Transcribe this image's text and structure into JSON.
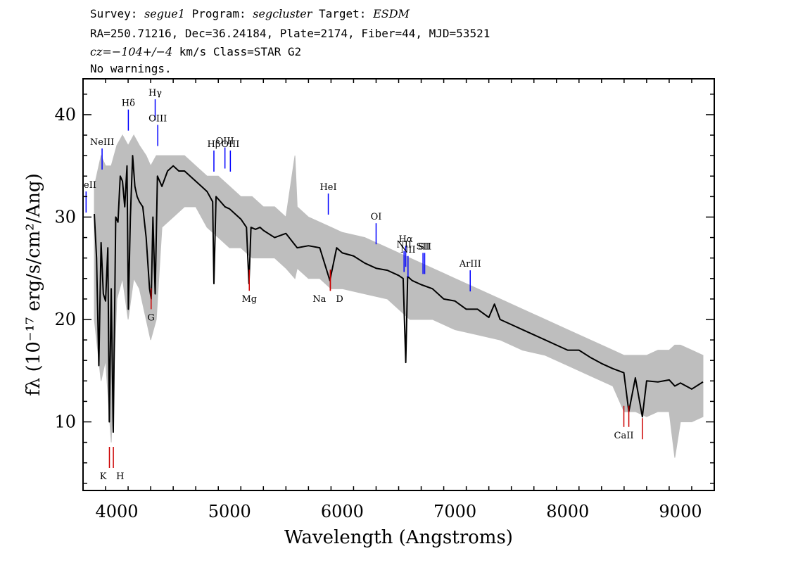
{
  "header": {
    "survey_label": "Survey:",
    "survey": "segue1",
    "program_label": "Program:",
    "program": "segcluster",
    "target_label": "Target:",
    "target": "ESDM",
    "line2": "RA=250.71216, Dec=36.24184, Plate=2174, Fiber=44, MJD=53521",
    "cz": "cz=−104+/−4",
    "cz_rest": " km/s Class=STAR G2",
    "warnings": "No warnings."
  },
  "chart_data": {
    "type": "line",
    "xlabel": "Wavelength (Angstroms)",
    "ylabel": "fλ (10⁻¹⁷ erg/s/cm²/Ang)",
    "xlim": [
      3700,
      9300
    ],
    "ylim": [
      3.3,
      43.5
    ],
    "x_ticks": [
      4000,
      5000,
      6000,
      7000,
      8000,
      9000
    ],
    "y_ticks": [
      10,
      20,
      30,
      40
    ],
    "grid": false,
    "series": [
      {
        "role": "flux",
        "color": "#000000",
        "x": [
          3800,
          3820,
          3840,
          3860,
          3880,
          3900,
          3920,
          3933,
          3950,
          3968,
          3990,
          4010,
          4030,
          4050,
          4070,
          4090,
          4102,
          4120,
          4140,
          4160,
          4180,
          4200,
          4230,
          4260,
          4290,
          4305,
          4320,
          4340,
          4360,
          4400,
          4450,
          4500,
          4550,
          4600,
          4650,
          4700,
          4750,
          4800,
          4850,
          4861,
          4880,
          4920,
          4960,
          5000,
          5050,
          5100,
          5150,
          5172,
          5190,
          5230,
          5270,
          5300,
          5400,
          5500,
          5600,
          5700,
          5800,
          5890,
          5950,
          6000,
          6100,
          6200,
          6300,
          6400,
          6500,
          6540,
          6563,
          6580,
          6620,
          6700,
          6800,
          6900,
          7000,
          7100,
          7200,
          7300,
          7350,
          7400,
          7500,
          7600,
          7700,
          7800,
          7900,
          8000,
          8100,
          8200,
          8300,
          8400,
          8498,
          8542,
          8600,
          8662,
          8700,
          8800,
          8900,
          8950,
          9000,
          9100,
          9200
        ],
        "values": [
          30.3,
          26,
          15.5,
          27.5,
          22.5,
          21.8,
          27,
          10,
          23,
          9,
          30,
          29.5,
          34,
          33.5,
          31,
          35,
          21,
          30,
          36,
          33,
          32,
          31.5,
          31,
          28,
          23,
          22,
          30,
          22.5,
          34,
          33,
          34.5,
          35,
          34.5,
          34.5,
          34,
          33.5,
          33,
          32.5,
          31.5,
          23.5,
          32,
          31.5,
          31,
          30.8,
          30.3,
          29.8,
          29,
          23.5,
          29,
          28.8,
          29,
          28.7,
          28,
          28.4,
          27,
          27.2,
          27,
          23.8,
          27,
          26.5,
          26.2,
          25.5,
          25,
          24.8,
          24.3,
          24,
          15.8,
          24.2,
          23.8,
          23.4,
          23,
          22,
          21.8,
          21,
          21,
          20.2,
          21.5,
          20,
          19.5,
          19,
          18.5,
          18,
          17.5,
          17,
          17,
          16.3,
          15.7,
          15.2,
          14.8,
          11,
          14.3,
          10.5,
          14,
          13.9,
          14.1,
          13.5,
          13.8,
          13.2,
          13.9
        ]
      },
      {
        "role": "error",
        "color": "#bebebe",
        "x": [
          3800,
          3860,
          3900,
          3950,
          4000,
          4050,
          4100,
          4150,
          4200,
          4260,
          4300,
          4350,
          4400,
          4500,
          4600,
          4700,
          4800,
          4900,
          5000,
          5100,
          5200,
          5300,
          5400,
          5500,
          5580,
          5600,
          5700,
          5800,
          5900,
          6000,
          6200,
          6400,
          6600,
          6800,
          7000,
          7200,
          7400,
          7600,
          7800,
          8000,
          8200,
          8400,
          8500,
          8600,
          8700,
          8800,
          8900,
          8950,
          9000,
          9100,
          9200
        ],
        "upper": [
          33,
          36,
          35,
          35,
          37,
          38,
          37,
          38,
          37,
          36,
          35,
          36,
          36,
          36,
          36,
          35,
          34,
          34,
          33,
          32,
          32,
          31,
          31,
          30,
          36,
          31,
          30,
          29.5,
          29,
          28.5,
          28,
          27,
          26,
          25,
          24,
          23,
          22,
          21,
          20,
          19,
          18,
          17,
          16.5,
          16.5,
          16.5,
          17,
          17,
          17.5,
          17.5,
          17,
          16.5
        ],
        "lower": [
          20,
          14,
          16,
          8,
          22,
          24,
          20,
          24,
          23,
          20,
          18,
          20,
          29,
          30,
          31,
          31,
          29,
          28,
          27,
          27,
          26,
          26,
          26,
          25,
          24,
          25,
          24,
          24,
          23,
          23,
          22.5,
          22,
          20,
          20,
          19,
          18.5,
          18,
          17,
          16.5,
          15.5,
          14.5,
          13.5,
          11,
          11,
          10.5,
          11,
          11,
          6.5,
          10,
          10,
          10.5
        ]
      }
    ],
    "emission_lines": [
      {
        "label": "NeII",
        "x": 3727,
        "y": 32.5
      },
      {
        "label": "NeIII",
        "x": 3869,
        "y": 36.7
      },
      {
        "label": "Hδ",
        "x": 4102,
        "y": 40.5
      },
      {
        "label": "Hγ",
        "x": 4340,
        "y": 41.5
      },
      {
        "label": "OIII",
        "x": 4363,
        "y": 39
      },
      {
        "label": "Hβ",
        "x": 4861,
        "y": 36.5
      },
      {
        "label": "OIII",
        "x": 4959,
        "y": 36.8
      },
      {
        "label": "OIII",
        "x": 5007,
        "y": 36.5
      },
      {
        "label": "HeI",
        "x": 5876,
        "y": 32.3
      },
      {
        "label": "OI",
        "x": 6300,
        "y": 29.4
      },
      {
        "label": "NII",
        "x": 6548,
        "y": 26.7
      },
      {
        "label": "Hα",
        "x": 6563,
        "y": 27.2
      },
      {
        "label": "NII",
        "x": 6583,
        "y": 26.2
      },
      {
        "label": "SII",
        "x": 6716,
        "y": 26.5
      },
      {
        "label": "SII",
        "x": 6731,
        "y": 26.5
      },
      {
        "label": "ArIII",
        "x": 7135,
        "y": 24.8
      }
    ],
    "absorption_lines": [
      {
        "label": "K",
        "x": 3934,
        "y": 5.5
      },
      {
        "label": "H",
        "x": 3969,
        "y": 5.5
      },
      {
        "label": "G",
        "x": 4304,
        "y": 21
      },
      {
        "label": "Mg",
        "x": 5175,
        "y": 22.8
      },
      {
        "label": "Na",
        "x": 5894,
        "y": 22.8
      },
      {
        "label": "D",
        "x": 5894,
        "y": 22.8
      },
      {
        "label": "CaII",
        "x": 8498,
        "y": 9.5
      },
      {
        "label": "CaII",
        "x": 8542,
        "y": 9.5
      },
      {
        "label": "CaII",
        "x": 8662,
        "y": 8.3
      }
    ]
  },
  "colors": {
    "flux": "#000000",
    "error": "#bebebe",
    "emission": "#0000ff",
    "absorption": "#cc0000"
  }
}
